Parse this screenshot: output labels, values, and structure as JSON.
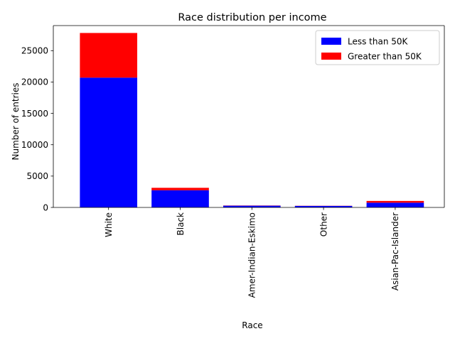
{
  "chart_data": {
    "type": "bar",
    "stacked": true,
    "title": "Race distribution per income",
    "xlabel": "Race",
    "ylabel": "Number of entries",
    "categories": [
      "White",
      "Black",
      "Amer-Indian-Eskimo",
      "Other",
      "Asian-Pac-Islander"
    ],
    "series": [
      {
        "name": "Less than 50K",
        "color": "#0000ff",
        "values": [
          20700,
          2740,
          275,
          245,
          760
        ]
      },
      {
        "name": "Greater than 50K",
        "color": "#ff0000",
        "values": [
          7120,
          390,
          36,
          25,
          275
        ]
      }
    ],
    "ylim": [
      0,
      29000
    ],
    "yticks": [
      0,
      5000,
      10000,
      15000,
      20000,
      25000
    ],
    "grid": false,
    "legend_position": "upper right"
  }
}
